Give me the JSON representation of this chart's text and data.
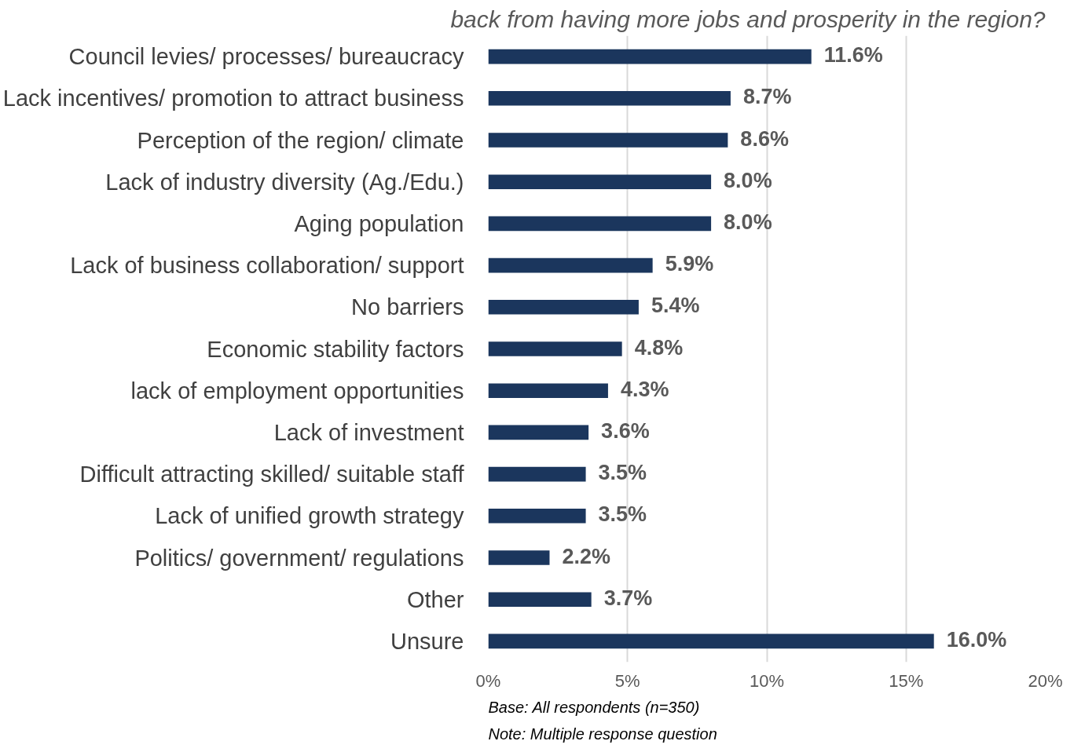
{
  "chart_data": {
    "type": "bar",
    "orientation": "horizontal",
    "title": "back from having more jobs and prosperity in the region?",
    "categories": [
      "Council levies/ processes/ bureaucracy",
      "Lack incentives/ promotion to attract business",
      "Perception of the region/ climate",
      "Lack of industry diversity (Ag./Edu.)",
      "Aging population",
      "Lack of business collaboration/ support",
      "No barriers",
      "Economic stability factors",
      "lack of employment opportunities",
      "Lack of investment",
      "Difficult attracting skilled/ suitable staff",
      "Lack of unified growth strategy",
      "Politics/ government/ regulations",
      "Other",
      "Unsure"
    ],
    "values": [
      11.6,
      8.7,
      8.6,
      8.0,
      8.0,
      5.9,
      5.4,
      4.8,
      4.3,
      3.6,
      3.5,
      3.5,
      2.2,
      3.7,
      16.0
    ],
    "value_labels": [
      "11.6%",
      "8.7%",
      "8.6%",
      "8.0%",
      "8.0%",
      "5.9%",
      "5.4%",
      "4.8%",
      "4.3%",
      "3.6%",
      "3.5%",
      "3.5%",
      "2.2%",
      "3.7%",
      "16.0%"
    ],
    "color": "#1b365d",
    "xlim": [
      0,
      20
    ],
    "xticks": [
      {
        "value": 0,
        "label": "0%"
      },
      {
        "value": 5,
        "label": "5%"
      },
      {
        "value": 10,
        "label": "10%"
      },
      {
        "value": 15,
        "label": "15%"
      },
      {
        "value": 20,
        "label": "20%"
      }
    ],
    "grid": "x",
    "annotations": [
      "Base: All respondents (n=350)",
      "Note: Multiple response question"
    ]
  }
}
